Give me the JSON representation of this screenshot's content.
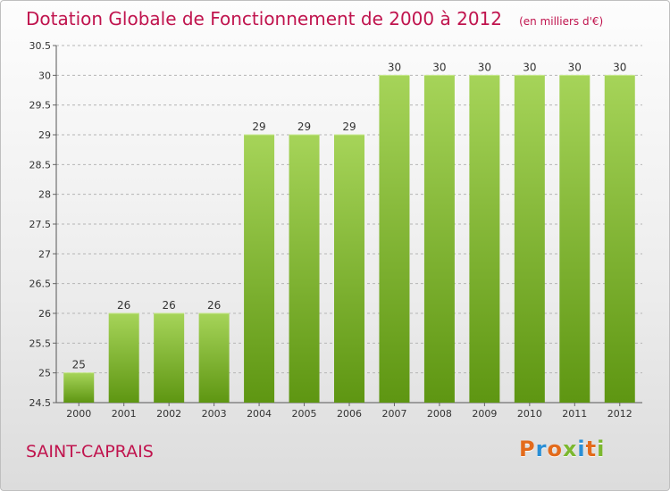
{
  "header": {
    "title": "Dotation Globale de Fonctionnement de 2000 à 2012",
    "subtitle": "(en milliers d'€)"
  },
  "footer": {
    "commune": "SAINT-CAPRAIS",
    "logo": "Proxiti",
    "logo_colors": [
      "#e36b1c",
      "#2a8fd6",
      "#e36b1c",
      "#7cb82f",
      "#2a8fd6",
      "#e36b1c",
      "#7cb82f"
    ]
  },
  "colors": {
    "bar_top": "#a6d459",
    "bar_bottom": "#5e9612",
    "title": "#c0144e",
    "grid": "#b5b5b5"
  },
  "chart_data": {
    "type": "bar",
    "categories": [
      "2000",
      "2001",
      "2002",
      "2003",
      "2004",
      "2005",
      "2006",
      "2007",
      "2008",
      "2009",
      "2010",
      "2011",
      "2012"
    ],
    "values": [
      25,
      26,
      26,
      26,
      29,
      29,
      29,
      30,
      30,
      30,
      30,
      30,
      30
    ],
    "data_labels": [
      "25",
      "26",
      "26",
      "26",
      "29",
      "29",
      "29",
      "30",
      "30",
      "30",
      "30",
      "30",
      "30"
    ],
    "title": "Dotation Globale de Fonctionnement de 2000 à 2012",
    "subtitle": "(en milliers d'€)",
    "xlabel": "",
    "ylabel": "",
    "ylim": [
      24.5,
      30.5
    ],
    "yticks": [
      "24.5",
      "25",
      "25.5",
      "26",
      "26.5",
      "27",
      "27.5",
      "28",
      "28.5",
      "29",
      "29.5",
      "30",
      "30.5"
    ],
    "grid": "horizontal dashed",
    "legend": "none"
  }
}
